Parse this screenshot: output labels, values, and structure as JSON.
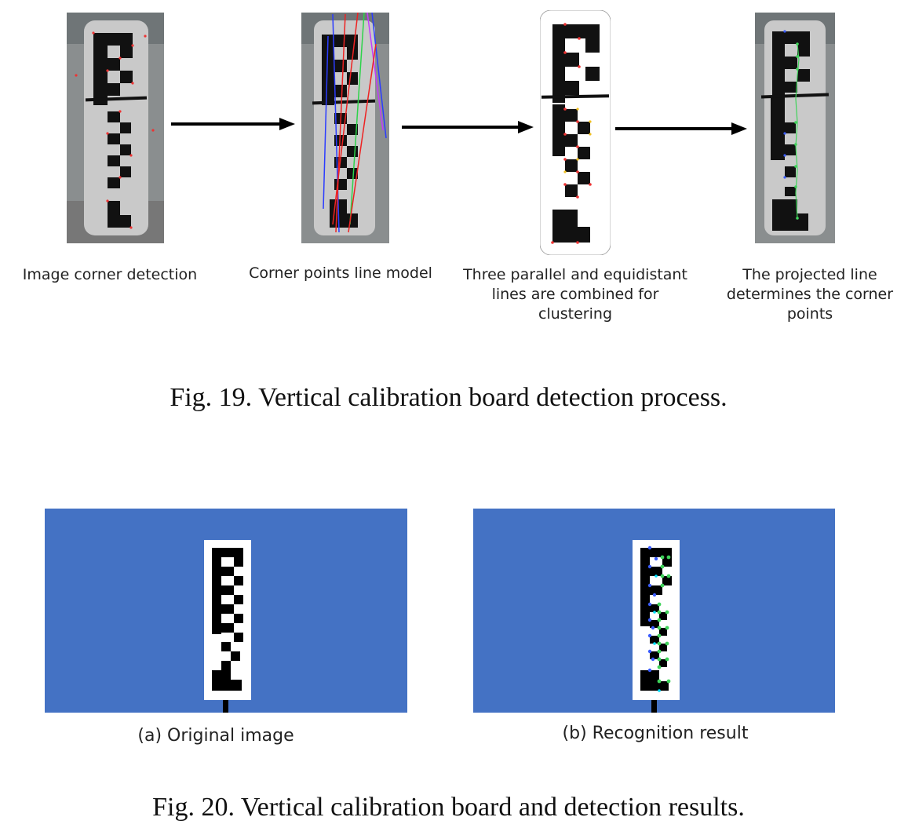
{
  "figure19": {
    "steps": [
      {
        "label": "Image corner detection"
      },
      {
        "label": "Corner points line model"
      },
      {
        "label": "Three parallel and equidistant\nlines are combined for\nclustering"
      },
      {
        "label": "The projected line\ndetermines the corner\npoints"
      }
    ],
    "caption": "Fig. 19.   Vertical calibration board detection process."
  },
  "figure20": {
    "panels": [
      {
        "label": "(a) Original image"
      },
      {
        "label": "(b) Recognition result"
      }
    ],
    "caption": "Fig. 20.   Vertical calibration board and detection results."
  },
  "colors": {
    "panel_background": "#4472c4",
    "board": "#ffffff",
    "marker": "#000000",
    "detected_corner_green": "#3fd35a",
    "detected_corner_blue": "#3a5cff"
  }
}
